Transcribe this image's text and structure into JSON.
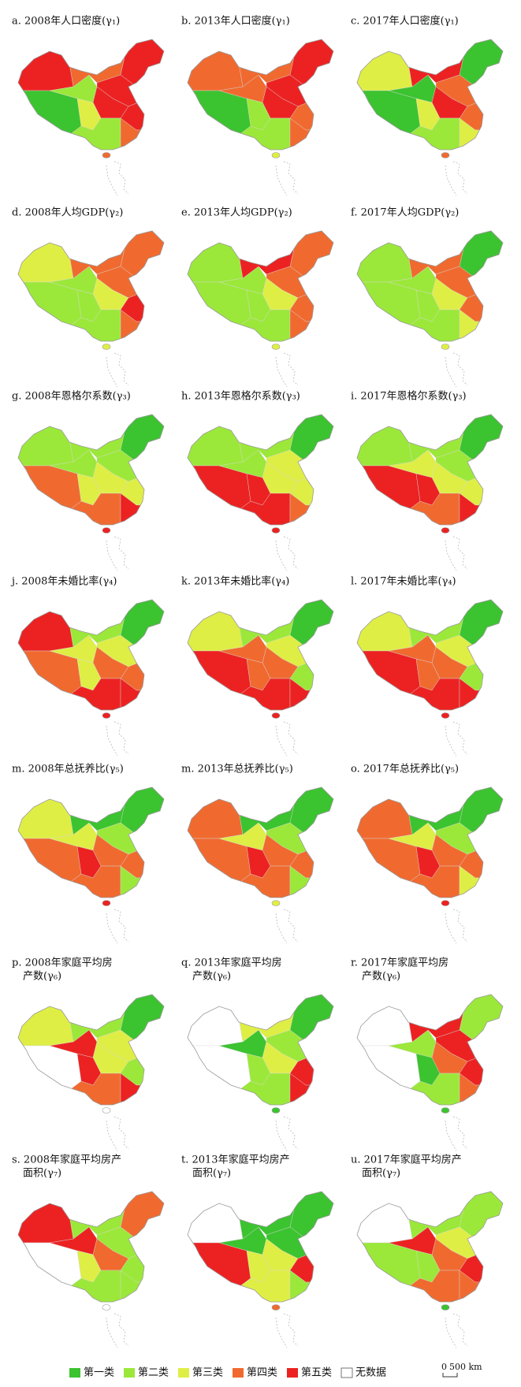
{
  "panels": [
    {
      "title": [
        "a. 2008年人口密度(γ₁)"
      ]
    },
    {
      "title": [
        "b. 2013年人口密度(γ₁)"
      ]
    },
    {
      "title": [
        "c. 2017年人口密度(γ₁)"
      ]
    },
    {
      "title": [
        "d. 2008年人均GDP(γ₂)"
      ]
    },
    {
      "title": [
        "e. 2013年人均GDP(γ₂)"
      ]
    },
    {
      "title": [
        "f. 2017年人均GDP(γ₂)"
      ]
    },
    {
      "title": [
        "g. 2008年恩格尔系数(γ₃)"
      ]
    },
    {
      "title": [
        "h. 2013年恩格尔系数(γ₃)"
      ]
    },
    {
      "title": [
        "i. 2017年恩格尔系数(γ₃)"
      ]
    },
    {
      "title": [
        "j. 2008年未婚比率(γ₄)"
      ]
    },
    {
      "title": [
        "k. 2013年未婚比率(γ₄)"
      ]
    },
    {
      "title": [
        "l. 2017年未婚比率(γ₄)"
      ]
    },
    {
      "title": [
        "m. 2008年总抚养比(γ₅)"
      ]
    },
    {
      "title": [
        "m. 2013年总抚养比(γ₅)"
      ]
    },
    {
      "title": [
        "o. 2017年总抚养比(γ₅)"
      ]
    },
    {
      "title": [
        "p. 2008年家庭平均房",
        "产数(γ₆)"
      ]
    },
    {
      "title": [
        "q. 2013年家庭平均房",
        "产数(γ₆)"
      ]
    },
    {
      "title": [
        "r. 2017年家庭平均房",
        "产数(γ₆)"
      ]
    },
    {
      "title": [
        "s. 2008年家庭平均房产",
        "面积(γ₇)"
      ]
    },
    {
      "title": [
        "t. 2013年家庭平均房产",
        "面积(γ₇)"
      ]
    },
    {
      "title": [
        "u. 2017年家庭平均房产",
        "面积(γ₇)"
      ]
    }
  ],
  "legend": [
    {
      "label": "第一类",
      "color": "#3cc330"
    },
    {
      "label": "第二类",
      "color": "#9be83a"
    },
    {
      "label": "第三类",
      "color": "#dfee45"
    },
    {
      "label": "第四类",
      "color": "#f06a30"
    },
    {
      "label": "第五类",
      "color": "#ec2222"
    },
    {
      "label": "无数据",
      "color": "#ffffff"
    }
  ],
  "scale_bar": [
    "0",
    "500 km"
  ]
}
